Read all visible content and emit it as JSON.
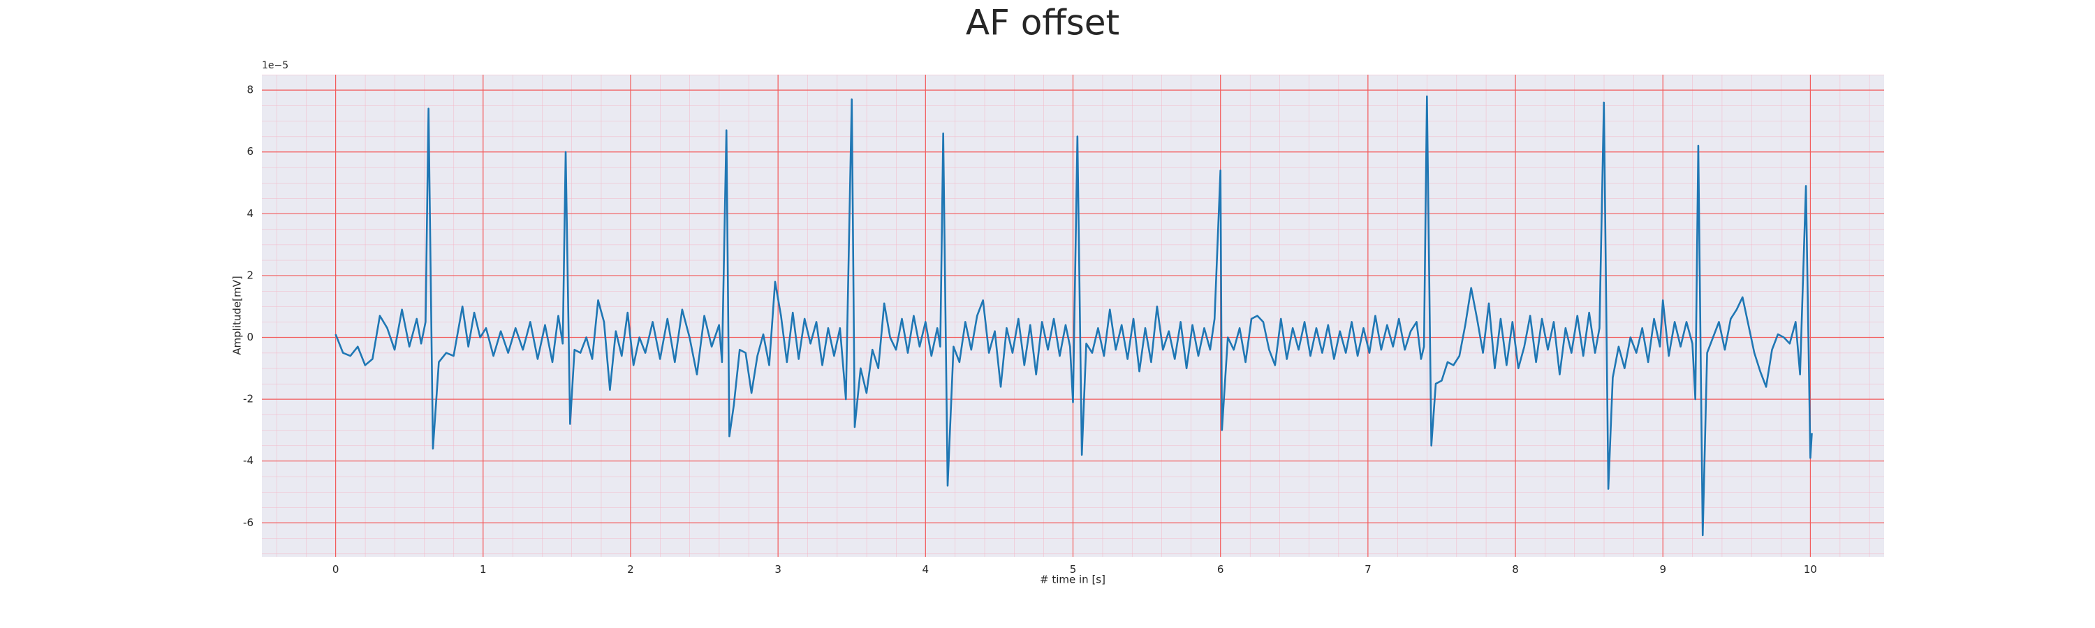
{
  "chart_data": {
    "type": "line",
    "title": "AF offset",
    "xlabel": "# time in [s]",
    "ylabel": "Amplitude[mV]",
    "y_offset_label": "1e−5",
    "color": "#1f77b4",
    "grid": true,
    "xlim": [
      -0.5,
      10.5
    ],
    "ylim": [
      -7.1,
      8.5
    ],
    "xticks": [
      0,
      1,
      2,
      3,
      4,
      5,
      6,
      7,
      8,
      9,
      10
    ],
    "yticks": [
      -6,
      -4,
      -2,
      0,
      2,
      4,
      6,
      8
    ],
    "x": [
      0.0,
      0.05,
      0.1,
      0.15,
      0.2,
      0.25,
      0.3,
      0.35,
      0.4,
      0.45,
      0.5,
      0.55,
      0.58,
      0.61,
      0.63,
      0.66,
      0.7,
      0.75,
      0.8,
      0.86,
      0.9,
      0.94,
      0.98,
      1.02,
      1.07,
      1.12,
      1.17,
      1.22,
      1.27,
      1.32,
      1.37,
      1.42,
      1.47,
      1.51,
      1.54,
      1.56,
      1.59,
      1.62,
      1.66,
      1.7,
      1.74,
      1.78,
      1.82,
      1.86,
      1.9,
      1.94,
      1.98,
      2.02,
      2.06,
      2.1,
      2.15,
      2.2,
      2.25,
      2.3,
      2.35,
      2.4,
      2.45,
      2.5,
      2.55,
      2.6,
      2.62,
      2.65,
      2.67,
      2.7,
      2.74,
      2.78,
      2.82,
      2.86,
      2.9,
      2.94,
      2.98,
      3.02,
      3.06,
      3.1,
      3.14,
      3.18,
      3.22,
      3.26,
      3.3,
      3.34,
      3.38,
      3.42,
      3.46,
      3.5,
      3.52,
      3.56,
      3.6,
      3.64,
      3.68,
      3.72,
      3.76,
      3.8,
      3.84,
      3.88,
      3.92,
      3.96,
      4.0,
      4.04,
      4.08,
      4.1,
      4.12,
      4.15,
      4.19,
      4.23,
      4.27,
      4.31,
      4.35,
      4.39,
      4.43,
      4.47,
      4.51,
      4.55,
      4.59,
      4.63,
      4.67,
      4.71,
      4.75,
      4.79,
      4.83,
      4.87,
      4.91,
      4.95,
      4.98,
      5.0,
      5.03,
      5.06,
      5.09,
      5.13,
      5.17,
      5.21,
      5.25,
      5.29,
      5.33,
      5.37,
      5.41,
      5.45,
      5.49,
      5.53,
      5.57,
      5.61,
      5.65,
      5.69,
      5.73,
      5.77,
      5.81,
      5.85,
      5.89,
      5.93,
      5.96,
      6.0,
      6.01,
      6.05,
      6.09,
      6.13,
      6.17,
      6.21,
      6.25,
      6.29,
      6.33,
      6.37,
      6.41,
      6.45,
      6.49,
      6.53,
      6.57,
      6.61,
      6.65,
      6.69,
      6.73,
      6.77,
      6.81,
      6.85,
      6.89,
      6.93,
      6.97,
      7.01,
      7.05,
      7.09,
      7.13,
      7.17,
      7.21,
      7.25,
      7.29,
      7.33,
      7.36,
      7.38,
      7.4,
      7.43,
      7.46,
      7.5,
      7.54,
      7.58,
      7.62,
      7.66,
      7.7,
      7.74,
      7.78,
      7.82,
      7.86,
      7.9,
      7.94,
      7.98,
      8.02,
      8.06,
      8.1,
      8.14,
      8.18,
      8.22,
      8.26,
      8.3,
      8.34,
      8.38,
      8.42,
      8.46,
      8.5,
      8.54,
      8.57,
      8.6,
      8.63,
      8.66,
      8.7,
      8.74,
      8.78,
      8.82,
      8.86,
      8.9,
      8.94,
      8.98,
      9.0,
      9.04,
      9.08,
      9.12,
      9.16,
      9.2,
      9.22,
      9.24,
      9.27,
      9.3,
      9.34,
      9.38,
      9.42,
      9.46,
      9.5,
      9.54,
      9.58,
      9.62,
      9.66,
      9.7,
      9.74,
      9.78,
      9.82,
      9.86,
      9.9,
      9.93,
      9.97,
      10.0,
      10.01
    ],
    "values": [
      0.1,
      -0.5,
      -0.6,
      -0.3,
      -0.9,
      -0.7,
      0.7,
      0.3,
      -0.4,
      0.9,
      -0.3,
      0.6,
      -0.2,
      0.5,
      7.4,
      -3.6,
      -0.8,
      -0.5,
      -0.6,
      1.0,
      -0.3,
      0.8,
      0.0,
      0.3,
      -0.6,
      0.2,
      -0.5,
      0.3,
      -0.4,
      0.5,
      -0.7,
      0.4,
      -0.8,
      0.7,
      -0.2,
      6.0,
      -2.8,
      -0.4,
      -0.5,
      0.0,
      -0.7,
      1.2,
      0.5,
      -1.7,
      0.2,
      -0.6,
      0.8,
      -0.9,
      0.0,
      -0.5,
      0.5,
      -0.7,
      0.6,
      -0.8,
      0.9,
      0.0,
      -1.2,
      0.7,
      -0.3,
      0.4,
      -0.8,
      6.7,
      -3.2,
      -2.2,
      -0.4,
      -0.5,
      -1.8,
      -0.6,
      0.1,
      -0.9,
      1.8,
      0.7,
      -0.8,
      0.8,
      -0.7,
      0.6,
      -0.2,
      0.5,
      -0.9,
      0.3,
      -0.6,
      0.3,
      -2.0,
      7.7,
      -2.9,
      -1.0,
      -1.8,
      -0.4,
      -1.0,
      1.1,
      0.0,
      -0.4,
      0.6,
      -0.5,
      0.7,
      -0.3,
      0.5,
      -0.6,
      0.3,
      -0.3,
      6.6,
      -4.8,
      -0.3,
      -0.8,
      0.5,
      -0.4,
      0.7,
      1.2,
      -0.5,
      0.2,
      -1.6,
      0.3,
      -0.5,
      0.6,
      -0.9,
      0.4,
      -1.2,
      0.5,
      -0.4,
      0.6,
      -0.6,
      0.4,
      -0.3,
      -2.1,
      6.5,
      -3.8,
      -0.2,
      -0.5,
      0.3,
      -0.6,
      0.9,
      -0.4,
      0.4,
      -0.7,
      0.6,
      -1.1,
      0.3,
      -0.8,
      1.0,
      -0.4,
      0.2,
      -0.7,
      0.5,
      -1.0,
      0.4,
      -0.6,
      0.3,
      -0.4,
      0.6,
      5.4,
      -3.0,
      0.0,
      -0.4,
      0.3,
      -0.8,
      0.6,
      0.7,
      0.5,
      -0.4,
      -0.9,
      0.6,
      -0.7,
      0.3,
      -0.4,
      0.5,
      -0.6,
      0.3,
      -0.5,
      0.4,
      -0.7,
      0.2,
      -0.5,
      0.5,
      -0.6,
      0.3,
      -0.5,
      0.7,
      -0.4,
      0.4,
      -0.3,
      0.6,
      -0.4,
      0.2,
      0.5,
      -0.7,
      -0.3,
      7.8,
      -3.5,
      -1.5,
      -1.4,
      -0.8,
      -0.9,
      -0.6,
      0.4,
      1.6,
      0.6,
      -0.5,
      1.1,
      -1.0,
      0.6,
      -0.9,
      0.5,
      -1.0,
      -0.3,
      0.7,
      -0.8,
      0.6,
      -0.4,
      0.5,
      -1.2,
      0.3,
      -0.5,
      0.7,
      -0.6,
      0.8,
      -0.5,
      0.3,
      7.6,
      -4.9,
      -1.3,
      -0.3,
      -1.0,
      0.0,
      -0.5,
      0.3,
      -0.8,
      0.6,
      -0.3,
      1.2,
      -0.6,
      0.5,
      -0.3,
      0.5,
      -0.2,
      -2.0,
      6.2,
      -6.4,
      -0.5,
      0.0,
      0.5,
      -0.4,
      0.6,
      0.9,
      1.3,
      0.4,
      -0.5,
      -1.1,
      -1.6,
      -0.4,
      0.1,
      0.0,
      -0.2,
      0.5,
      -1.2,
      4.9,
      -3.9,
      -3.1
    ]
  }
}
